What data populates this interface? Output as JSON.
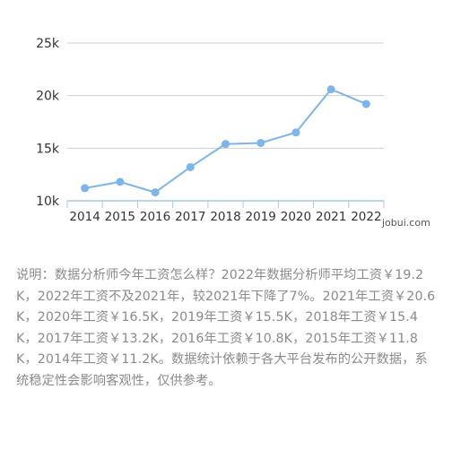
{
  "chart_data": {
    "type": "line",
    "categories": [
      "2014",
      "2015",
      "2016",
      "2017",
      "2018",
      "2019",
      "2020",
      "2021",
      "2022"
    ],
    "values": [
      11.2,
      11.8,
      10.8,
      13.2,
      15.4,
      15.5,
      16.5,
      20.6,
      19.2
    ],
    "y_ticks": [
      "10k",
      "15k",
      "20k",
      "25k"
    ],
    "y_tick_values": [
      10,
      15,
      20,
      25
    ],
    "ylim": [
      10,
      25
    ],
    "grid": true,
    "legend": "none",
    "line_color": "#7cb5ec",
    "point_color": "#7cb5ec",
    "grid_color": "#cfcfcf",
    "axis_color": "#a7c7ec"
  },
  "watermark": "jobui.com",
  "description": "说明：数据分析师今年工资怎么样？2022年数据分析师平均工资￥19.2K，2022年工资不及2021年，较2021年下降了7%。2021年工资￥20.6K，2020年工资￥16.5K，2019年工资￥15.5K，2018年工资￥15.4K，2017年工资￥13.2K，2016年工资￥10.8K，2015年工资￥11.8K，2014年工资￥11.2K。数据统计依赖于各大平台发布的公开数据，系统稳定性会影响客观性，仅供参考。"
}
